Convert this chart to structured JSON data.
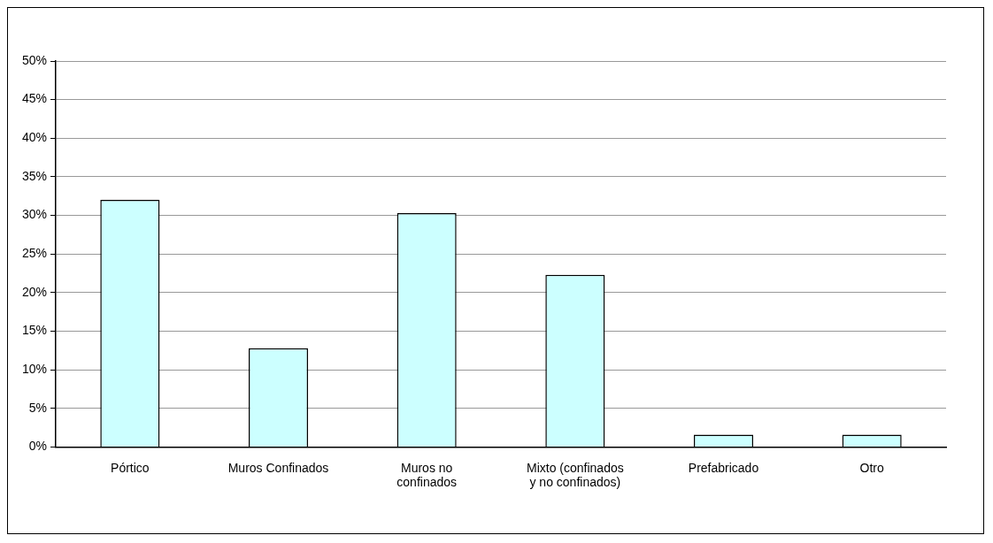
{
  "chart_data": {
    "type": "bar",
    "categories": [
      "Pórtico",
      "Muros Confinados",
      "Muros no confinados",
      "Mixto (confinados y no confinados)",
      "Prefabricado",
      "Otro"
    ],
    "values": [
      32,
      12.8,
      30.3,
      22.3,
      1.6,
      1.6
    ],
    "color": "#ccffff",
    "ylim": [
      0,
      50
    ],
    "yticks": [
      {
        "value": 0,
        "label": "0%"
      },
      {
        "value": 5,
        "label": "5%"
      },
      {
        "value": 10,
        "label": "10%"
      },
      {
        "value": 15,
        "label": "15%"
      },
      {
        "value": 20,
        "label": "20%"
      },
      {
        "value": 25,
        "label": "25%"
      },
      {
        "value": 30,
        "label": "30%"
      },
      {
        "value": 35,
        "label": "35%"
      },
      {
        "value": 40,
        "label": "40%"
      },
      {
        "value": 45,
        "label": "45%"
      },
      {
        "value": 50,
        "label": "50%"
      }
    ],
    "grid": "y",
    "legend": false
  }
}
